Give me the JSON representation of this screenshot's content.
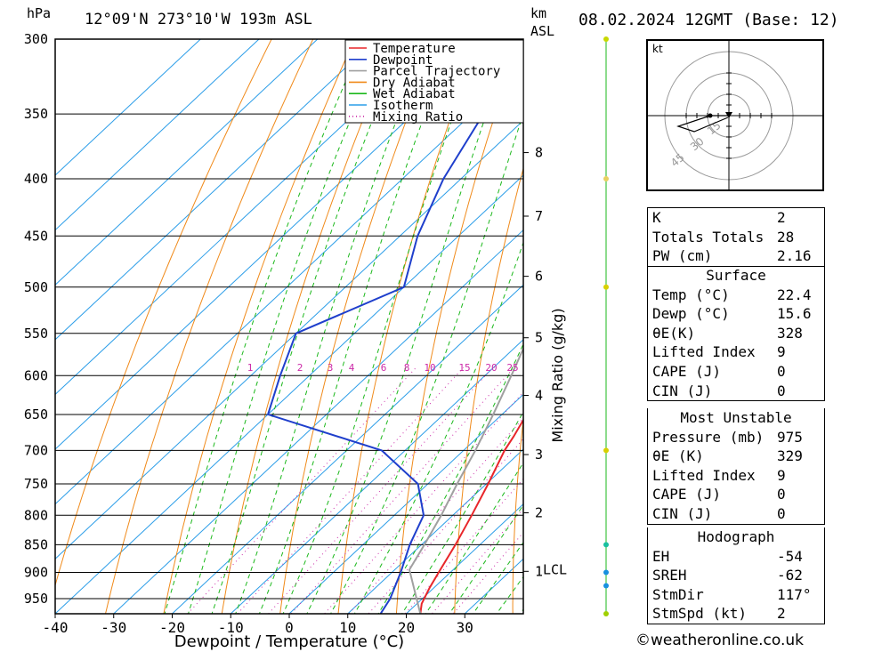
{
  "header": {
    "hpa_label": "hPa",
    "location": "12°09'N  273°10'W  193m  ASL",
    "km_label": "km",
    "asl_label": "ASL",
    "datetime": "08.02.2024  12GMT  (Base: 12)"
  },
  "chart_data": {
    "type": "line",
    "title": "",
    "xlabel": "Dewpoint / Temperature (°C)",
    "ylabel": "hPa",
    "y2label": "Mixing Ratio (g/kg)",
    "xlim": [
      -40,
      40
    ],
    "ylim": [
      980,
      300
    ],
    "y_scale": "log",
    "skew": "skew-T",
    "x_ticks": [
      -40,
      -30,
      -20,
      -10,
      0,
      10,
      20,
      30
    ],
    "y_ticks": [
      300,
      350,
      400,
      450,
      500,
      550,
      600,
      650,
      700,
      750,
      800,
      850,
      900,
      950
    ],
    "km_ticks": [
      {
        "km": 8,
        "p": 379
      },
      {
        "km": 7,
        "p": 432
      },
      {
        "km": 6,
        "p": 489
      },
      {
        "km": 5,
        "p": 555
      },
      {
        "km": 4,
        "p": 625
      },
      {
        "km": 3,
        "p": 706
      },
      {
        "km": 2,
        "p": 796
      },
      {
        "km": 1,
        "p": 898
      }
    ],
    "lcl_label": "LCL",
    "lcl_pressure": 895,
    "mixing_ratio_labels": [
      "1",
      "2",
      "3",
      "4",
      "6",
      "8",
      "10",
      "15",
      "20",
      "25"
    ],
    "mixing_ratio_values": [
      1,
      2,
      3,
      4,
      6,
      8,
      10,
      15,
      20,
      25
    ],
    "mixing_ratio_label_pressure": 590,
    "legend_position": "top-right",
    "legend": [
      {
        "name": "Temperature",
        "color": "#e8262a",
        "style": "solid"
      },
      {
        "name": "Dewpoint",
        "color": "#1f3fcc",
        "style": "solid"
      },
      {
        "name": "Parcel Trajectory",
        "color": "#a0a0a0",
        "style": "solid"
      },
      {
        "name": "Dry Adiabat",
        "color": "#f08a1a",
        "style": "solid"
      },
      {
        "name": "Wet Adiabat",
        "color": "#1bb81b",
        "style": "solid"
      },
      {
        "name": "Isotherm",
        "color": "#2b9de8",
        "style": "solid"
      },
      {
        "name": "Mixing Ratio",
        "color": "#cc2aa8",
        "style": "dotted"
      }
    ],
    "series": [
      {
        "name": "Temperature",
        "color": "#e8262a",
        "points": [
          [
            980,
            22.4
          ],
          [
            960,
            20.8
          ],
          [
            930,
            19.3
          ],
          [
            900,
            18.0
          ],
          [
            850,
            15.8
          ],
          [
            800,
            13.2
          ],
          [
            750,
            10.3
          ],
          [
            700,
            7.0
          ],
          [
            680,
            6.0
          ],
          [
            650,
            4.2
          ],
          [
            600,
            -0.3
          ],
          [
            550,
            -4.5
          ],
          [
            500,
            -10.5
          ],
          [
            450,
            -16.2
          ],
          [
            400,
            -22.0
          ],
          [
            360,
            -28.3
          ],
          [
            340,
            -31.0
          ],
          [
            300,
            -37.6
          ]
        ]
      },
      {
        "name": "Dewpoint",
        "color": "#1f3fcc",
        "points": [
          [
            980,
            15.6
          ],
          [
            950,
            14.5
          ],
          [
            900,
            11.5
          ],
          [
            850,
            8.0
          ],
          [
            800,
            5.0
          ],
          [
            750,
            -1.7
          ],
          [
            700,
            -14.0
          ],
          [
            650,
            -40.0
          ],
          [
            600,
            -45.0
          ],
          [
            550,
            -50.0
          ],
          [
            500,
            -40.0
          ],
          [
            450,
            -47.0
          ],
          [
            400,
            -53.0
          ],
          [
            350,
            -58.0
          ],
          [
            300,
            -66.0
          ]
        ]
      },
      {
        "name": "Parcel Trajectory",
        "color": "#a0a0a0",
        "points": [
          [
            980,
            22.4
          ],
          [
            895,
            12.5
          ],
          [
            850,
            10.5
          ],
          [
            800,
            8.0
          ],
          [
            750,
            5.0
          ],
          [
            700,
            2.0
          ],
          [
            650,
            -1.5
          ],
          [
            600,
            -5.5
          ],
          [
            550,
            -10.0
          ],
          [
            500,
            -15.5
          ],
          [
            450,
            -22.0
          ],
          [
            400,
            -30.0
          ],
          [
            350,
            -39.0
          ],
          [
            300,
            -50.0
          ]
        ]
      }
    ]
  },
  "hodograph": {
    "unit_label": "kt",
    "ring_labels": [
      "15",
      "30",
      "45"
    ]
  },
  "indices": {
    "rows": [
      {
        "label": "K",
        "value": "2"
      },
      {
        "label": "Totals Totals",
        "value": "28"
      },
      {
        "label": "PW (cm)",
        "value": "2.16"
      }
    ]
  },
  "surface": {
    "title": "Surface",
    "rows": [
      {
        "label": "Temp (°C)",
        "value": "22.4"
      },
      {
        "label": "Dewp (°C)",
        "value": "15.6"
      },
      {
        "label": "θE(K)",
        "value": "328"
      },
      {
        "label": "Lifted Index",
        "value": "9"
      },
      {
        "label": "CAPE (J)",
        "value": "0"
      },
      {
        "label": "CIN (J)",
        "value": "0"
      }
    ]
  },
  "most_unstable": {
    "title": "Most Unstable",
    "rows": [
      {
        "label": "Pressure (mb)",
        "value": "975"
      },
      {
        "label": "θE (K)",
        "value": "329"
      },
      {
        "label": "Lifted Index",
        "value": "9"
      },
      {
        "label": "CAPE (J)",
        "value": "0"
      },
      {
        "label": "CIN (J)",
        "value": "0"
      }
    ]
  },
  "hodograph_table": {
    "title": "Hodograph",
    "rows": [
      {
        "label": "EH",
        "value": "-54"
      },
      {
        "label": "SREH",
        "value": "-62"
      },
      {
        "label": "StmDir",
        "value": "117°"
      },
      {
        "label": "StmSpd (kt)",
        "value": "2"
      }
    ]
  },
  "footer": {
    "copyright_symbol": "©",
    "site": "weatheronline.co.uk"
  }
}
